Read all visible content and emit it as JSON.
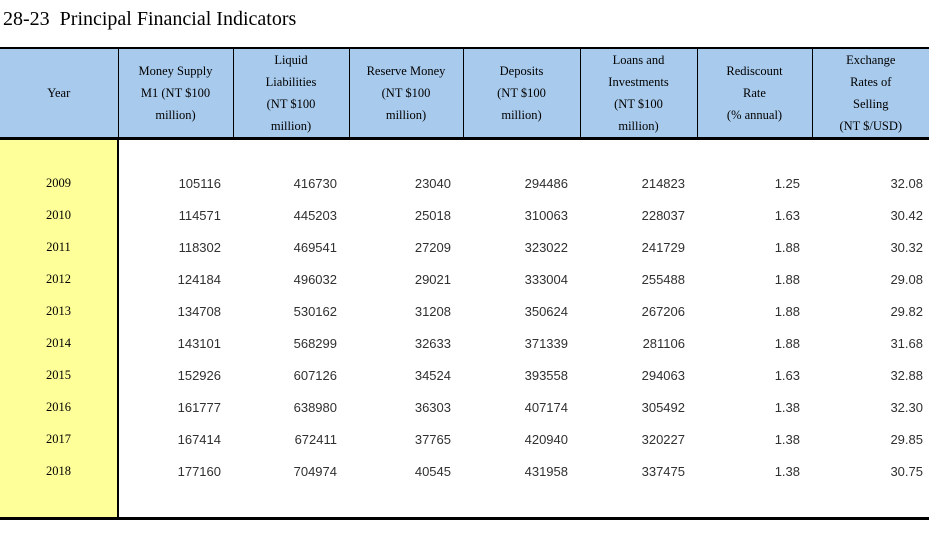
{
  "title": "28-23  Principal Financial Indicators",
  "colors": {
    "header_bg": "#a8caec",
    "year_column_bg": "#ffff99",
    "border": "#000000",
    "page_bg": "#ffffff"
  },
  "table": {
    "columns": [
      {
        "id": "year",
        "label": "Year"
      },
      {
        "id": "money-supply-m1",
        "label": "Money Supply\nM1 (NT $100\nmillion)"
      },
      {
        "id": "liquid-liabilities",
        "label": "Liquid\nLiabilities\n(NT $100\nmillion)"
      },
      {
        "id": "reserve-money",
        "label": "Reserve Money\n(NT $100\nmillion)"
      },
      {
        "id": "deposits",
        "label": "Deposits\n(NT $100\nmillion)"
      },
      {
        "id": "loans-and-investments",
        "label": "Loans and\nInvestments\n(NT $100\nmillion)"
      },
      {
        "id": "rediscount-rate",
        "label": "Rediscount\nRate\n(% annual)"
      },
      {
        "id": "exchange-rates-selling",
        "label": "Exchange\nRates of\nSelling\n(NT $/USD)"
      }
    ],
    "rows": [
      {
        "year": "2009",
        "values": [
          "105116",
          "416730",
          "23040",
          "294486",
          "214823",
          "1.25",
          "32.08"
        ]
      },
      {
        "year": "2010",
        "values": [
          "114571",
          "445203",
          "25018",
          "310063",
          "228037",
          "1.63",
          "30.42"
        ]
      },
      {
        "year": "2011",
        "values": [
          "118302",
          "469541",
          "27209",
          "323022",
          "241729",
          "1.88",
          "30.32"
        ]
      },
      {
        "year": "2012",
        "values": [
          "124184",
          "496032",
          "29021",
          "333004",
          "255488",
          "1.88",
          "29.08"
        ]
      },
      {
        "year": "2013",
        "values": [
          "134708",
          "530162",
          "31208",
          "350624",
          "267206",
          "1.88",
          "29.82"
        ]
      },
      {
        "year": "2014",
        "values": [
          "143101",
          "568299",
          "32633",
          "371339",
          "281106",
          "1.88",
          "31.68"
        ]
      },
      {
        "year": "2015",
        "values": [
          "152926",
          "607126",
          "34524",
          "393558",
          "294063",
          "1.63",
          "32.88"
        ]
      },
      {
        "year": "2016",
        "values": [
          "161777",
          "638980",
          "36303",
          "407174",
          "305492",
          "1.38",
          "32.30"
        ]
      },
      {
        "year": "2017",
        "values": [
          "167414",
          "672411",
          "37765",
          "420940",
          "320227",
          "1.38",
          "29.85"
        ]
      },
      {
        "year": "2018",
        "values": [
          "177160",
          "704974",
          "40545",
          "431958",
          "337475",
          "1.38",
          "30.75"
        ]
      }
    ]
  },
  "chart_data": {
    "type": "table",
    "title": "28-23 Principal Financial Indicators",
    "columns": [
      "Year",
      "Money Supply M1 (NT $100 million)",
      "Liquid Liabilities (NT $100 million)",
      "Reserve Money (NT $100 million)",
      "Deposits (NT $100 million)",
      "Loans and Investments (NT $100 million)",
      "Rediscount Rate (% annual)",
      "Exchange Rates of Selling (NT $/USD)"
    ],
    "rows": [
      [
        2009,
        105116,
        416730,
        23040,
        294486,
        214823,
        1.25,
        32.08
      ],
      [
        2010,
        114571,
        445203,
        25018,
        310063,
        228037,
        1.63,
        30.42
      ],
      [
        2011,
        118302,
        469541,
        27209,
        323022,
        241729,
        1.88,
        30.32
      ],
      [
        2012,
        124184,
        496032,
        29021,
        333004,
        255488,
        1.88,
        29.08
      ],
      [
        2013,
        134708,
        530162,
        31208,
        350624,
        267206,
        1.88,
        29.82
      ],
      [
        2014,
        143101,
        568299,
        32633,
        371339,
        281106,
        1.88,
        31.68
      ],
      [
        2015,
        152926,
        607126,
        34524,
        393558,
        294063,
        1.63,
        32.88
      ],
      [
        2016,
        161777,
        638980,
        36303,
        407174,
        305492,
        1.38,
        32.3
      ],
      [
        2017,
        167414,
        672411,
        37765,
        420940,
        320227,
        1.38,
        29.85
      ],
      [
        2018,
        177160,
        704974,
        40545,
        431958,
        337475,
        1.38,
        30.75
      ]
    ]
  }
}
